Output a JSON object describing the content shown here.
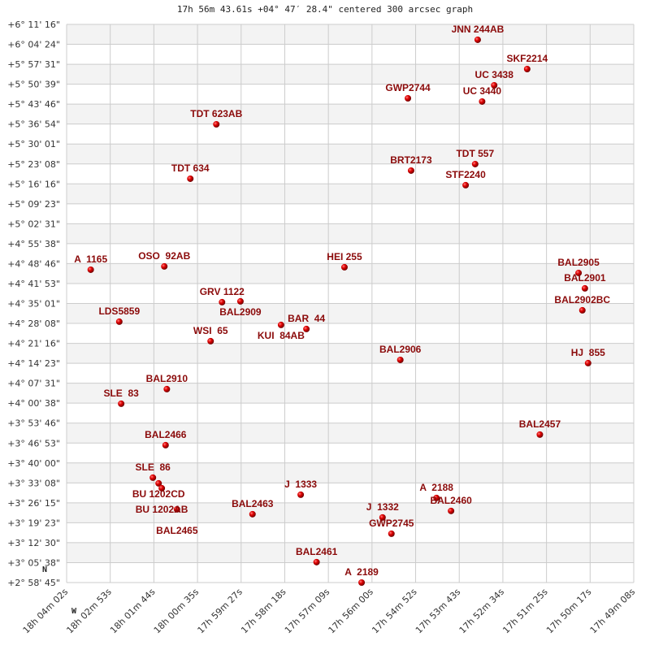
{
  "chart_data": {
    "type": "scatter",
    "title": "17h 56m 43.61s +04° 47′ 28.4\" centered 300 arcsec graph",
    "compass": {
      "north": "N",
      "west": "W"
    },
    "grid": true,
    "x_ticks": [
      "18h 04m 02s",
      "18h 02m 53s",
      "18h 01m 44s",
      "18h 00m 35s",
      "17h 59m 27s",
      "17h 58m 18s",
      "17h 57m 09s",
      "17h 56m 00s",
      "17h 54m 52s",
      "17h 53m 43s",
      "17h 52m 34s",
      "17h 51m 25s",
      "17h 50m 17s",
      "17h 49m 08s"
    ],
    "y_ticks": [
      "+6° 11' 16\"",
      "+6° 04' 24\"",
      "+5° 57' 31\"",
      "+5° 50' 39\"",
      "+5° 43' 46\"",
      "+5° 36' 54\"",
      "+5° 30' 01\"",
      "+5° 23' 08\"",
      "+5° 16' 16\"",
      "+5° 09' 23\"",
      "+5° 02' 31\"",
      "+4° 55' 38\"",
      "+4° 48' 46\"",
      "+4° 41' 53\"",
      "+4° 35' 01\"",
      "+4° 28' 08\"",
      "+4° 21' 16\"",
      "+4° 14' 23\"",
      "+4° 07' 31\"",
      "+4° 00' 38\"",
      "+3° 53' 46\"",
      "+3° 46' 53\"",
      "+3° 40' 00\"",
      "+3° 33' 08\"",
      "+3° 26' 15\"",
      "+3° 19' 23\"",
      "+3° 12' 30\"",
      "+3° 05' 38\"",
      "+2° 58' 45\""
    ],
    "colors": {
      "point": "#dd0000",
      "label": "#8b0a0a",
      "band": "#f3f3f3",
      "grid": "#cccccc"
    },
    "points": [
      {
        "name": "TDT 623AB",
        "ra": "18h 00m 06s",
        "dec": "+5° 36' 48\""
      },
      {
        "name": "TDT 634",
        "ra": "18h 00m 47s",
        "dec": "+5° 18' 02\""
      },
      {
        "name": "A  1165",
        "ra": "18h 03m 24s",
        "dec": "+4° 46' 39\""
      },
      {
        "name": "OSO  92AB",
        "ra": "18h 01m 28s",
        "dec": "+4° 47' 47\""
      },
      {
        "name": "HEI 255",
        "ra": "17h 56m 44s",
        "dec": "+4° 47' 30\""
      },
      {
        "name": "JNN 244AB",
        "ra": "17h 53m 14s",
        "dec": "+6° 05' 57\""
      },
      {
        "name": "SKF2214",
        "ra": "17h 51m 56s",
        "dec": "+5° 55' 51\""
      },
      {
        "name": "UC 3438",
        "ra": "17h 52m 48s",
        "dec": "+5° 50' 15\""
      },
      {
        "name": "UC 3440",
        "ra": "17h 53m 07s",
        "dec": "+5° 44' 39\""
      },
      {
        "name": "GWP2744",
        "ra": "17h 55m 04s",
        "dec": "+5° 45' 46\""
      },
      {
        "name": "BRT2173",
        "ra": "17h 54m 59s",
        "dec": "+5° 20' 50\""
      },
      {
        "name": "TDT 557",
        "ra": "17h 53m 18s",
        "dec": "+5° 23' 05\""
      },
      {
        "name": "STF2240",
        "ra": "17h 53m 33s",
        "dec": "+5° 15' 48\""
      },
      {
        "name": "BAL2905",
        "ra": "17h 50m 35s",
        "dec": "+4° 45' 32\""
      },
      {
        "name": "BAL2901",
        "ra": "17h 50m 25s",
        "dec": "+4° 40' 13\""
      },
      {
        "name": "BAL2902BC",
        "ra": "17h 50m 29s",
        "dec": "+4° 32' 39\""
      },
      {
        "name": "BAL2906",
        "ra": "17h 55m 16s",
        "dec": "+4° 15' 33\""
      },
      {
        "name": "HJ  855",
        "ra": "17h 50m 20s",
        "dec": "+4° 14' 26\""
      },
      {
        "name": "BAL2457",
        "ra": "17h 51m 36s",
        "dec": "+3° 49' 47\""
      },
      {
        "name": "A  2188",
        "ra": "17h 54m 19s",
        "dec": "+3° 27' 56\""
      },
      {
        "name": "BAL2460",
        "ra": "17h 53m 56s",
        "dec": "+3° 23' 27\""
      },
      {
        "name": "J  1332",
        "ra": "17h 55m 44s",
        "dec": "+3° 21' 12\""
      },
      {
        "name": "GWP2745",
        "ra": "17h 55m 30s",
        "dec": "+3° 15' 36\""
      },
      {
        "name": "A  2189",
        "ra": "17h 56m 17s",
        "dec": "+2° 58' 45\""
      },
      {
        "name": "GRV 1122",
        "ra": "17h 59m 57s",
        "dec": "+4° 35' 27\""
      },
      {
        "name": "BAL2909",
        "ra": "17h 59m 28s",
        "dec": "+4° 35' 44\""
      },
      {
        "name": "LDS5859",
        "ra": "18h 02m 39s",
        "dec": "+4° 28' 44\""
      },
      {
        "name": "KUI  84AB",
        "ra": "17h 58m 24s",
        "dec": "+4° 27' 36\""
      },
      {
        "name": "BAR  44",
        "ra": "17h 57m 44s",
        "dec": "+4° 26' 12\""
      },
      {
        "name": "WSI  65",
        "ra": "18h 00m 15s",
        "dec": "+4° 22' 00\""
      },
      {
        "name": "BAL2910",
        "ra": "18h 01m 24s",
        "dec": "+4° 05' 28\""
      },
      {
        "name": "SLE  83",
        "ra": "18h 02m 36s",
        "dec": "+4° 00' 26\""
      },
      {
        "name": "BAL2466",
        "ra": "18h 01m 26s",
        "dec": "+3° 46' 08\""
      },
      {
        "name": "SLE  86",
        "ra": "18h 01m 46s",
        "dec": "+3° 34' 56\""
      },
      {
        "name": "BU 1202CD",
        "ra": "18h 01m 37s",
        "dec": "+3° 32' 58\""
      },
      {
        "name": "BU 1202AB",
        "ra": "18h 01m 32s",
        "dec": "+3° 31' 17\""
      },
      {
        "name": "BAL2465",
        "ra": "18h 01m 08s",
        "dec": "+3° 24' 00\""
      },
      {
        "name": "BAL2463",
        "ra": "17h 59m 09s",
        "dec": "+3° 22' 20\""
      },
      {
        "name": "J  1333",
        "ra": "17h 57m 53s",
        "dec": "+3° 29' 03\""
      },
      {
        "name": "BAL2461",
        "ra": "17h 57m 28s",
        "dec": "+3° 05' 48\""
      }
    ]
  }
}
